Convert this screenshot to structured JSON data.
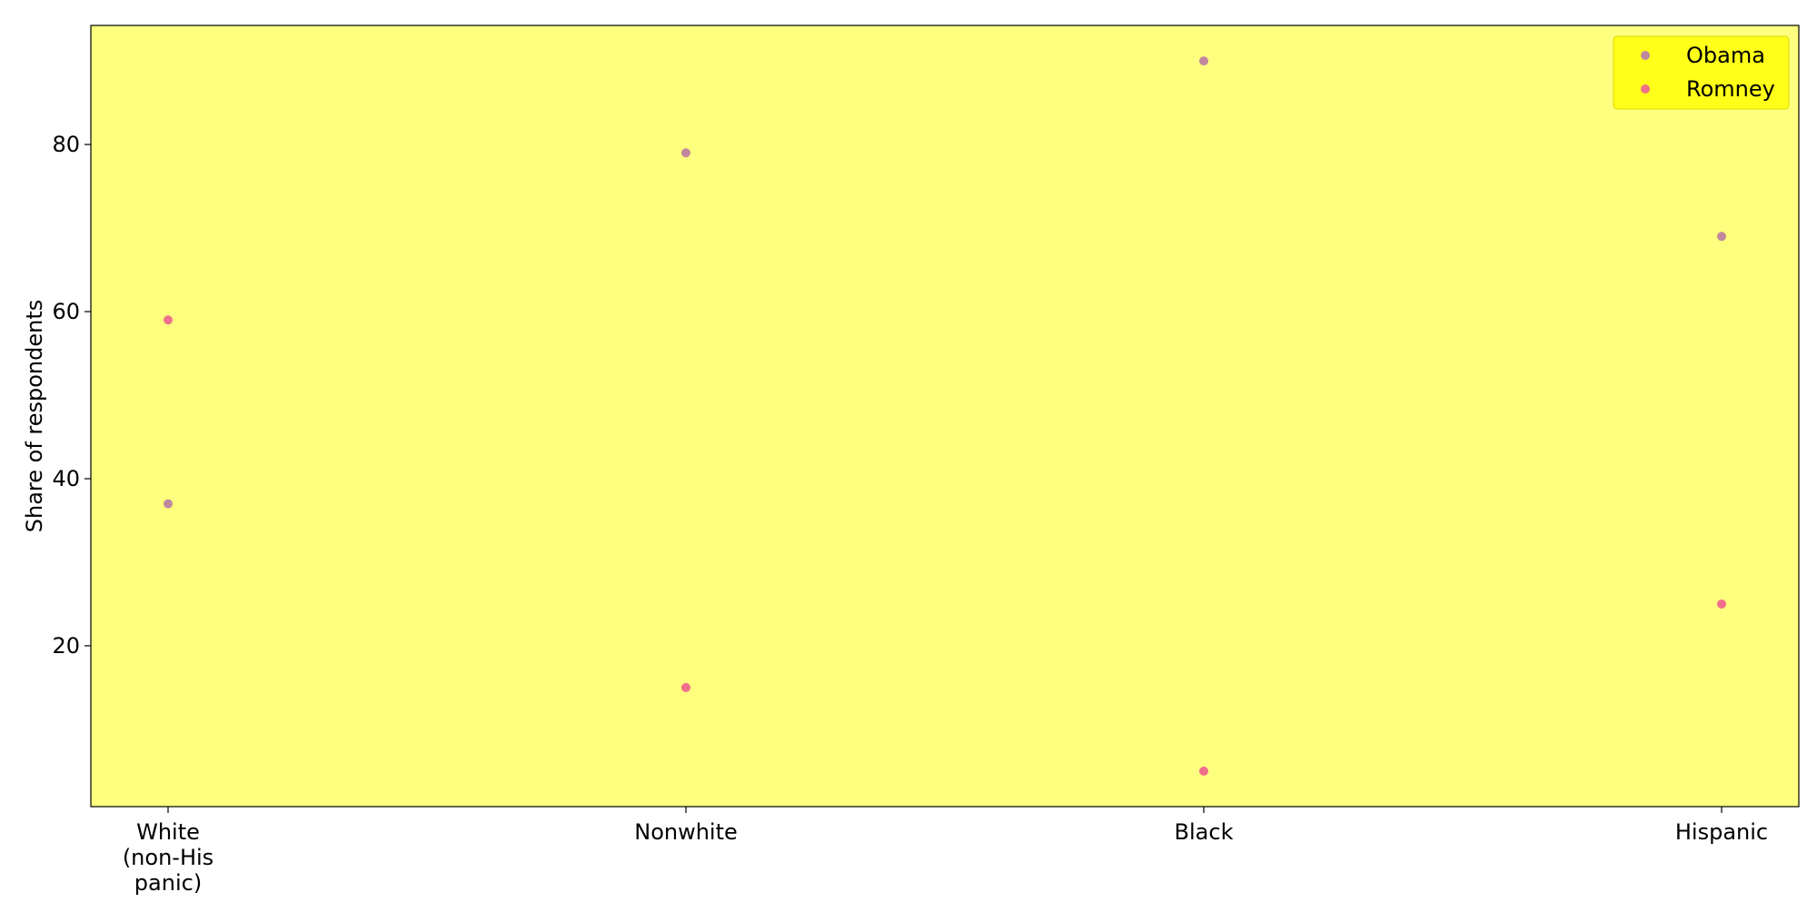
{
  "chart_data": {
    "type": "scatter",
    "categories": [
      "White\n(non-His\npanic)",
      "Nonwhite",
      "Black",
      "Hispanic"
    ],
    "series": [
      {
        "name": "Obama",
        "values": [
          37,
          79,
          90,
          69
        ],
        "color": "#c0889e"
      },
      {
        "name": "Romney",
        "values": [
          59,
          15,
          5,
          25
        ],
        "color": "#f0708c"
      }
    ],
    "title": "",
    "xlabel": "",
    "ylabel": "Share of respondents",
    "yticks": [
      20,
      40,
      60,
      80
    ],
    "ylim": [
      0.75,
      94.25
    ],
    "grid": false,
    "legend": "top-right",
    "colors": {
      "plot_background": "#ffff7f",
      "legend_background": "#ffff1a",
      "axes": "#000000"
    }
  }
}
